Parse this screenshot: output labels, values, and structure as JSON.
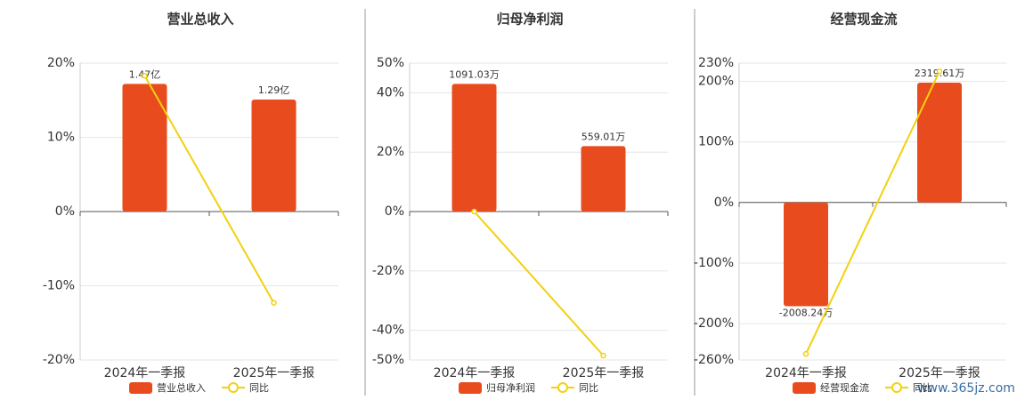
{
  "chart_data": [
    {
      "type": "bar",
      "title": "营业总收入",
      "categories": [
        "2024年一季报",
        "2025年一季报"
      ],
      "series": [
        {
          "name": "营业总收入",
          "color": "#e84c1e",
          "values": [
            1.47,
            1.29
          ],
          "value_labels": [
            "1.47亿",
            "1.29亿"
          ]
        },
        {
          "name": "同比",
          "type": "line",
          "color": "#f2d10f",
          "values": [
            18.3,
            -12.3
          ]
        }
      ],
      "ylim": [
        -20,
        20
      ],
      "yticks": [
        {
          "value": -20,
          "label": "-20%"
        },
        {
          "value": -10,
          "label": "-10%"
        },
        {
          "value": 0,
          "label": "0%"
        },
        {
          "value": 10,
          "label": "10%"
        },
        {
          "value": 20,
          "label": "20%"
        }
      ],
      "grid": true
    },
    {
      "type": "bar",
      "title": "归母净利润",
      "categories": [
        "2024年一季报",
        "2025年一季报"
      ],
      "series": [
        {
          "name": "归母净利润",
          "color": "#e84c1e",
          "values": [
            1091.03,
            559.01
          ],
          "value_labels": [
            "1091.03万",
            "559.01万"
          ]
        },
        {
          "name": "同比",
          "type": "line",
          "color": "#f2d10f",
          "values": [
            0,
            -48.5
          ]
        }
      ],
      "ylim": [
        -50,
        50
      ],
      "yticks": [
        {
          "value": -50,
          "label": "-50%"
        },
        {
          "value": -40,
          "label": "-40%"
        },
        {
          "value": -20,
          "label": "-20%"
        },
        {
          "value": 0,
          "label": "0%"
        },
        {
          "value": 20,
          "label": "20%"
        },
        {
          "value": 40,
          "label": "40%"
        },
        {
          "value": 50,
          "label": "50%"
        }
      ],
      "grid": true
    },
    {
      "type": "bar",
      "title": "经营现金流",
      "categories": [
        "2024年一季报",
        "2025年一季报"
      ],
      "series": [
        {
          "name": "经营现金流",
          "color": "#e84c1e",
          "values": [
            -2008.24,
            2319.61
          ],
          "value_labels": [
            "-2008.24万",
            "2319.61万"
          ]
        },
        {
          "name": "同比",
          "type": "line",
          "color": "#f2d10f",
          "values": [
            -250,
            216.5
          ]
        }
      ],
      "ylim": [
        -260,
        230
      ],
      "yticks": [
        {
          "value": -260,
          "label": "-260%"
        },
        {
          "value": -200,
          "label": "-200%"
        },
        {
          "value": -100,
          "label": "-100%"
        },
        {
          "value": 0,
          "label": "0%"
        },
        {
          "value": 100,
          "label": "100%"
        },
        {
          "value": 200,
          "label": "200%"
        },
        {
          "value": 230,
          "label": "230%"
        }
      ],
      "grid": true
    }
  ],
  "watermark": "www.365jz.com"
}
